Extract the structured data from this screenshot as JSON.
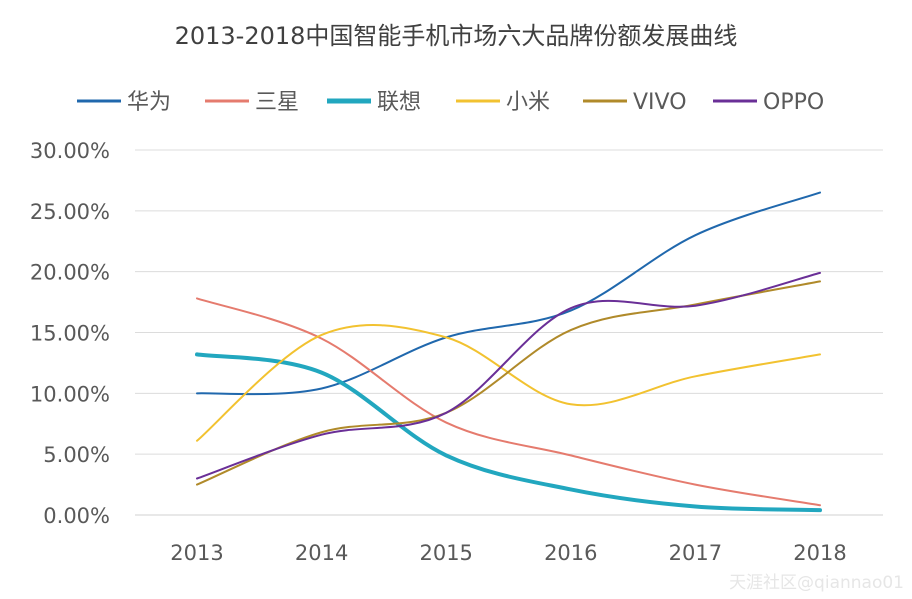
{
  "chart_data": {
    "type": "line",
    "title": "2013-2018中国智能手机市场六大品牌份额发展曲线",
    "xlabel": "",
    "ylabel": "",
    "categories": [
      "2013",
      "2014",
      "2015",
      "2016",
      "2017",
      "2018"
    ],
    "ylim": [
      0,
      0.3
    ],
    "yticks": [
      "0.00%",
      "5.00%",
      "10.00%",
      "15.00%",
      "20.00%",
      "25.00%",
      "30.00%"
    ],
    "grid": true,
    "smooth": true,
    "legend_position": "top",
    "series": [
      {
        "name": "华为",
        "color": "#2068ad",
        "width": 2,
        "values": [
          0.1,
          0.104,
          0.146,
          0.168,
          0.23,
          0.265
        ]
      },
      {
        "name": "三星",
        "color": "#e57b6e",
        "width": 2,
        "values": [
          0.178,
          0.145,
          0.076,
          0.049,
          0.025,
          0.008
        ]
      },
      {
        "name": "联想",
        "color": "#22a7bf",
        "width": 4,
        "values": [
          0.132,
          0.117,
          0.049,
          0.021,
          0.007,
          0.004
        ]
      },
      {
        "name": "小米",
        "color": "#f2c230",
        "width": 2,
        "values": [
          0.061,
          0.148,
          0.146,
          0.091,
          0.114,
          0.132
        ]
      },
      {
        "name": "VIVO",
        "color": "#b08a2a",
        "width": 2,
        "values": [
          0.025,
          0.068,
          0.084,
          0.152,
          0.173,
          0.192
        ]
      },
      {
        "name": "OPPO",
        "color": "#6a2f97",
        "width": 2,
        "values": [
          0.03,
          0.066,
          0.084,
          0.17,
          0.172,
          0.199
        ]
      }
    ]
  },
  "watermark": "天涯社区@qiannao01"
}
